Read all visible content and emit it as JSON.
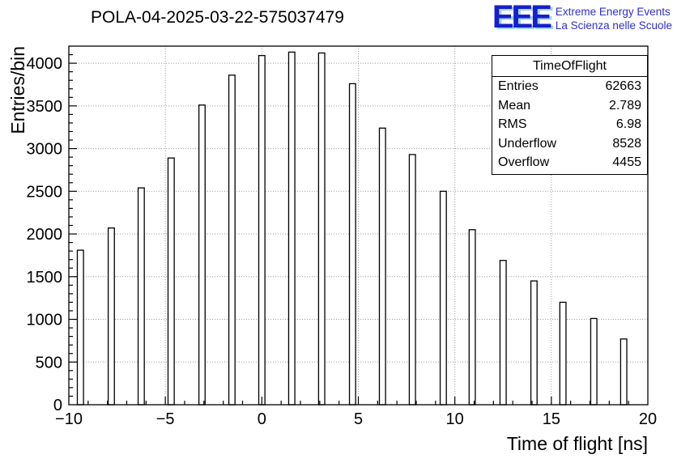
{
  "header": {
    "logo": {
      "text": "EEE",
      "line1": "Extreme Energy Events",
      "line2": "La Scienza nelle Scuole"
    }
  },
  "chart_data": {
    "type": "bar",
    "title": "POLA-04-2025-03-22-575037479",
    "xlabel": "Time of flight [ns]",
    "ylabel": "Entries/bin",
    "xlim": [
      -10,
      20
    ],
    "ylim": [
      0,
      4200
    ],
    "grid": true,
    "bar_width": 0.32,
    "x": [
      -9.4,
      -7.8,
      -6.25,
      -4.7,
      -3.1,
      -1.55,
      0,
      1.55,
      3.1,
      4.7,
      6.25,
      7.8,
      9.4,
      10.9,
      12.5,
      14.1,
      15.6,
      17.2,
      18.75
    ],
    "values": [
      1810,
      2070,
      2540,
      2890,
      3510,
      3860,
      4090,
      4130,
      4120,
      3760,
      3240,
      2930,
      2500,
      2050,
      1690,
      1450,
      1200,
      1010,
      770
    ],
    "x_ticks": {
      "values": [
        -10,
        -5,
        0,
        5,
        10,
        15,
        20
      ],
      "labels": [
        "−10",
        "−5",
        "0",
        "5",
        "10",
        "15",
        "20"
      ],
      "minor_step": 1
    },
    "y_ticks": {
      "values": [
        0,
        500,
        1000,
        1500,
        2000,
        2500,
        3000,
        3500,
        4000
      ],
      "labels": [
        "0",
        "500",
        "1000",
        "1500",
        "2000",
        "2500",
        "3000",
        "3500",
        "4000"
      ],
      "minor_step": 100
    },
    "stats": {
      "title": "TimeOfFlight",
      "rows": [
        {
          "label": "Entries",
          "value": "62663"
        },
        {
          "label": "Mean",
          "value": "2.789"
        },
        {
          "label": "RMS",
          "value": "6.98"
        },
        {
          "label": "Underflow",
          "value": "8528"
        },
        {
          "label": "Overflow",
          "value": "4455"
        }
      ]
    }
  }
}
